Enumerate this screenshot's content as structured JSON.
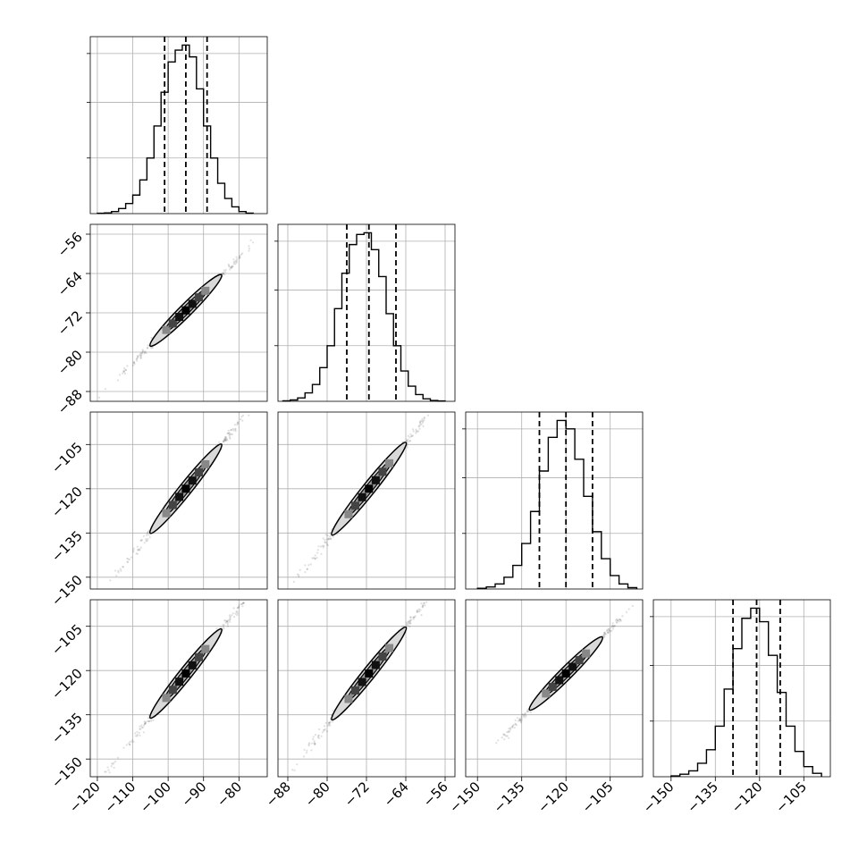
{
  "chart_data": {
    "type": "corner",
    "grid": true,
    "parameters": [
      {
        "range": [
          -122,
          -72
        ],
        "ticks": [
          -120,
          -110,
          -100,
          -90,
          -80
        ],
        "tick_labels": [
          "−120",
          "−110",
          "−100",
          "−90",
          "−80"
        ],
        "hist_ylim": [
          0,
          1.0
        ],
        "quantiles": [
          -101,
          -95,
          -89
        ],
        "hist_edges": [
          -120,
          -118,
          -116,
          -114,
          -112,
          -110,
          -108,
          -106,
          -104,
          -102,
          -100,
          -98,
          -96,
          -94,
          -92,
          -90,
          -88,
          -86,
          -84,
          -82,
          -80,
          -78,
          -76
        ],
        "hist_counts": [
          0.002,
          0.004,
          0.012,
          0.03,
          0.06,
          0.11,
          0.2,
          0.33,
          0.52,
          0.72,
          0.9,
          0.97,
          1.0,
          0.93,
          0.74,
          0.52,
          0.33,
          0.18,
          0.09,
          0.04,
          0.012,
          0.003
        ]
      },
      {
        "range": [
          -90,
          -54
        ],
        "ticks": [
          -88,
          -80,
          -72,
          -64,
          -56
        ],
        "tick_labels": [
          "−88",
          "−80",
          "−72",
          "−64",
          "−56"
        ],
        "hist_ylim": [
          0,
          1.0
        ],
        "quantiles": [
          -76,
          -71.5,
          -66
        ],
        "hist_edges": [
          -89,
          -87.5,
          -86,
          -84.5,
          -83,
          -81.5,
          -80,
          -78.5,
          -77,
          -75.5,
          -74,
          -72.5,
          -71,
          -69.5,
          -68,
          -66.5,
          -65,
          -63.5,
          -62,
          -60.5,
          -59,
          -57.5,
          -56
        ],
        "hist_counts": [
          0.003,
          0.008,
          0.02,
          0.05,
          0.1,
          0.2,
          0.33,
          0.55,
          0.76,
          0.93,
          0.99,
          1.0,
          0.9,
          0.74,
          0.52,
          0.33,
          0.18,
          0.09,
          0.04,
          0.015,
          0.005,
          0.002
        ]
      },
      {
        "range": [
          -154,
          -94
        ],
        "ticks": [
          -150,
          -135,
          -120,
          -105
        ],
        "tick_labels": [
          "−150",
          "−135",
          "−120",
          "−105"
        ],
        "hist_ylim": [
          0,
          1.0
        ],
        "quantiles": [
          -129,
          -120,
          -111
        ],
        "hist_edges": [
          -150,
          -147,
          -144,
          -141,
          -138,
          -135,
          -132,
          -129,
          -126,
          -123,
          -120,
          -117,
          -114,
          -111,
          -108,
          -105,
          -102,
          -99,
          -96
        ],
        "hist_counts": [
          0.004,
          0.012,
          0.03,
          0.07,
          0.14,
          0.27,
          0.46,
          0.7,
          0.9,
          1.0,
          0.95,
          0.77,
          0.55,
          0.34,
          0.18,
          0.08,
          0.03,
          0.008
        ]
      },
      {
        "range": [
          -156,
          -96
        ],
        "ticks": [
          -150,
          -135,
          -120,
          -105
        ],
        "tick_labels": [
          "−150",
          "−135",
          "−120",
          "−105"
        ],
        "hist_ylim": [
          0,
          1.0
        ],
        "quantiles": [
          -129,
          -121,
          -113
        ],
        "hist_edges": [
          -150,
          -147,
          -144,
          -141,
          -138,
          -135,
          -132,
          -129,
          -126,
          -123,
          -120,
          -117,
          -114,
          -111,
          -108,
          -105,
          -102,
          -99
        ],
        "hist_counts": [
          0.005,
          0.015,
          0.035,
          0.08,
          0.16,
          0.3,
          0.52,
          0.76,
          0.94,
          1.0,
          0.92,
          0.72,
          0.5,
          0.3,
          0.15,
          0.06,
          0.02
        ]
      }
    ],
    "pairs": [
      {
        "x": 0,
        "y": 1,
        "fit_center": [
          -95,
          -71.5
        ],
        "fit_slope": 0.72
      },
      {
        "x": 0,
        "y": 2,
        "fit_center": [
          -95,
          -120
        ],
        "fit_slope": 1.5
      },
      {
        "x": 1,
        "y": 2,
        "fit_center": [
          -71.5,
          -120
        ],
        "fit_slope": 2.08
      },
      {
        "x": 0,
        "y": 3,
        "fit_center": [
          -95,
          -121
        ],
        "fit_slope": 1.5
      },
      {
        "x": 1,
        "y": 3,
        "fit_center": [
          -71.5,
          -121
        ],
        "fit_slope": 2.08
      },
      {
        "x": 2,
        "y": 3,
        "fit_center": [
          -120,
          -121
        ],
        "fit_slope": 1.0
      }
    ],
    "colors": {
      "line": "#000000",
      "contour_fill": "#d9d9d9",
      "grid": "#b0b0b0",
      "points": "#555555"
    }
  }
}
